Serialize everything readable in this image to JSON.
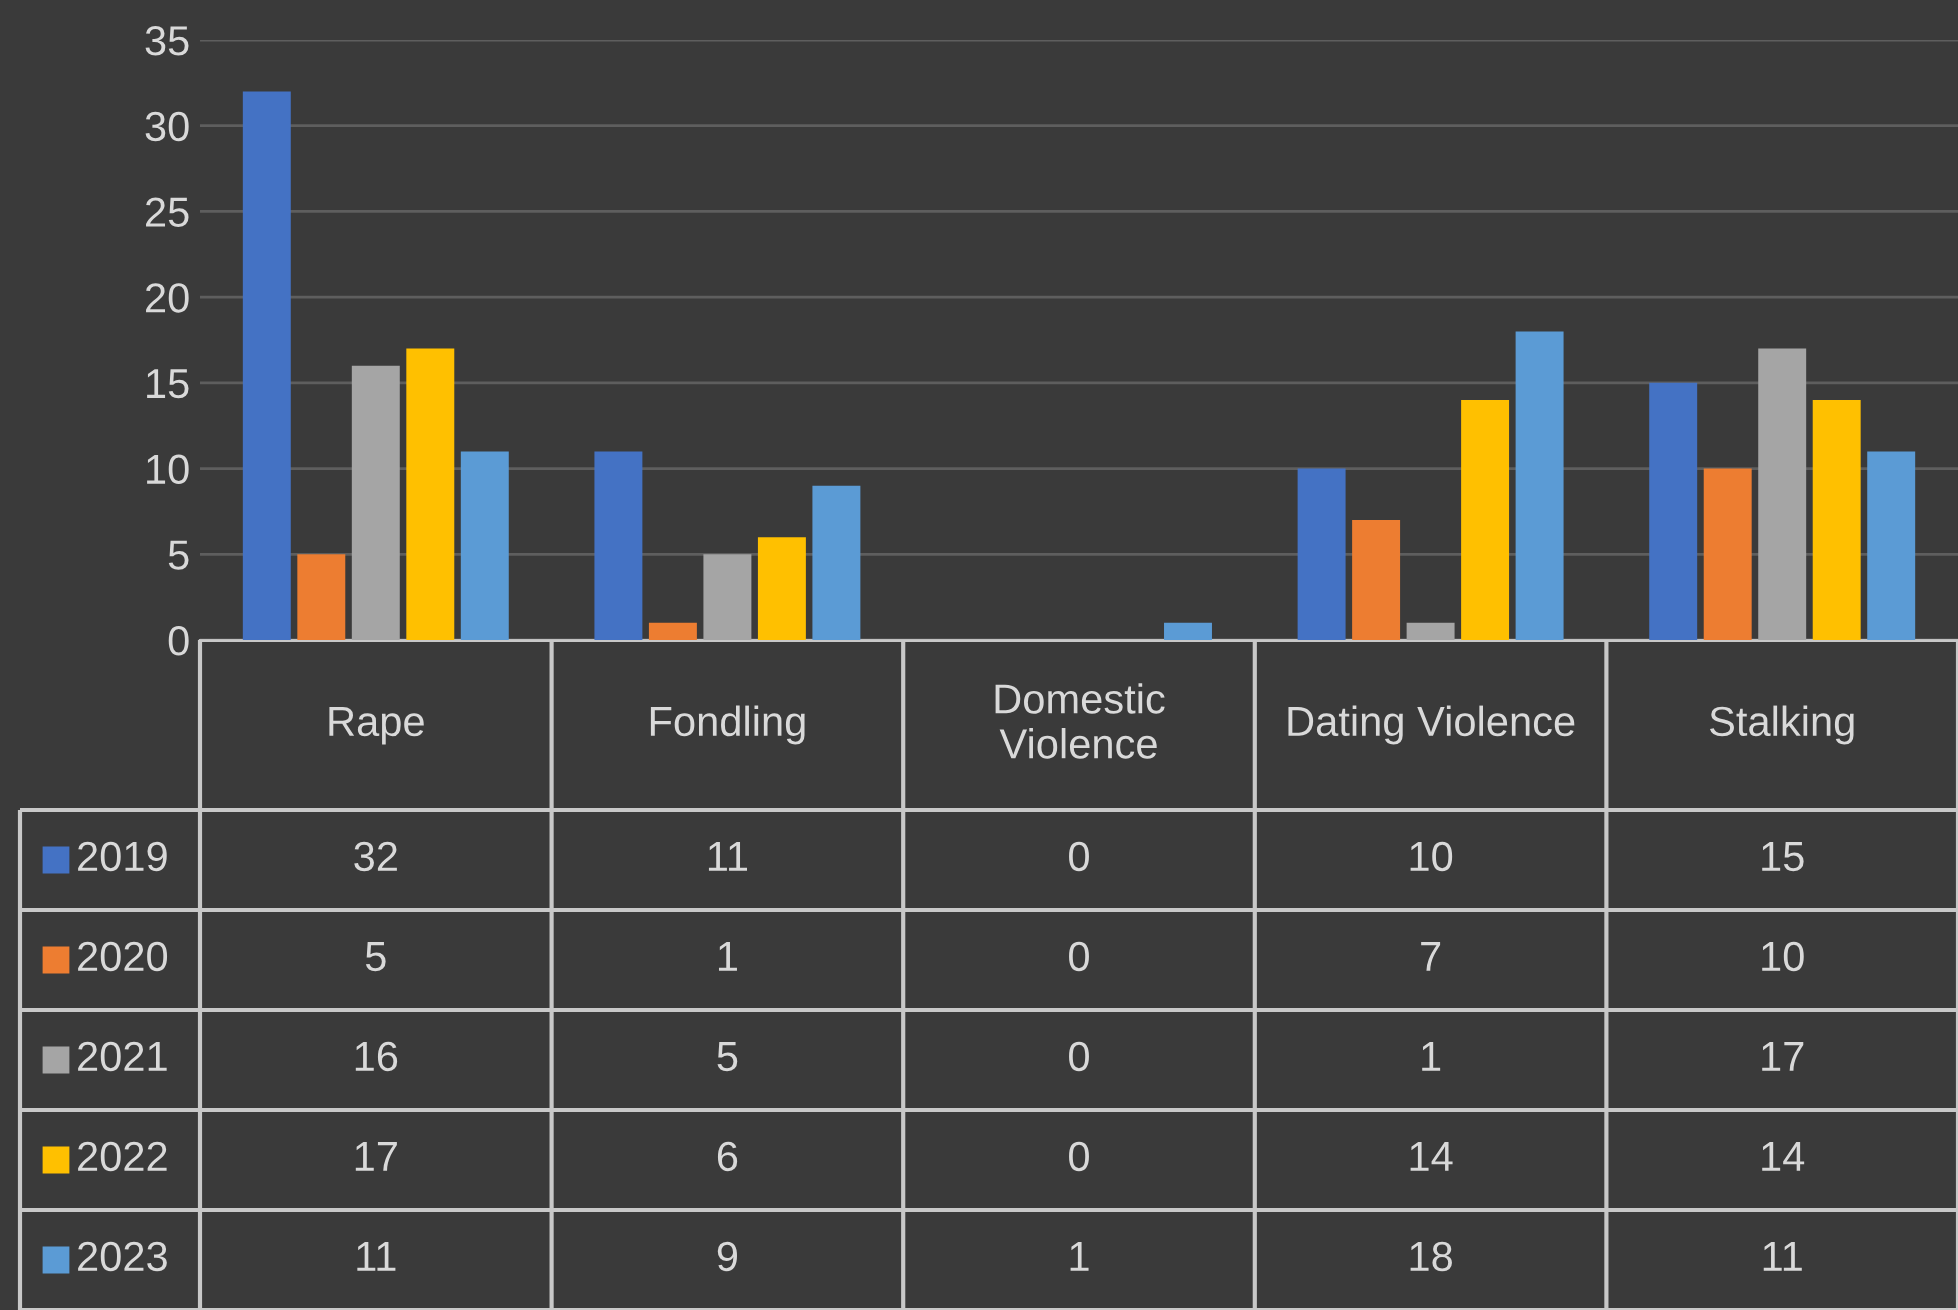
{
  "chart_data": {
    "type": "bar",
    "categories": [
      "Rape",
      "Fondling",
      "Domestic\nViolence",
      "Dating Violence",
      "Stalking"
    ],
    "series": [
      {
        "name": "2019",
        "color": "#4472c4",
        "values": [
          32,
          11,
          0,
          10,
          15
        ]
      },
      {
        "name": "2020",
        "color": "#ed7d31",
        "values": [
          5,
          1,
          0,
          7,
          10
        ]
      },
      {
        "name": "2021",
        "color": "#a5a5a5",
        "values": [
          16,
          5,
          0,
          1,
          17
        ]
      },
      {
        "name": "2022",
        "color": "#ffc000",
        "values": [
          17,
          6,
          0,
          14,
          14
        ]
      },
      {
        "name": "2023",
        "color": "#5b9bd5",
        "values": [
          11,
          9,
          1,
          18,
          11
        ]
      }
    ],
    "ylim": [
      0,
      35
    ],
    "yticks": [
      0,
      5,
      10,
      15,
      20,
      25,
      30,
      35
    ],
    "grid": "y",
    "legend": "bottom",
    "data_labels": true
  }
}
